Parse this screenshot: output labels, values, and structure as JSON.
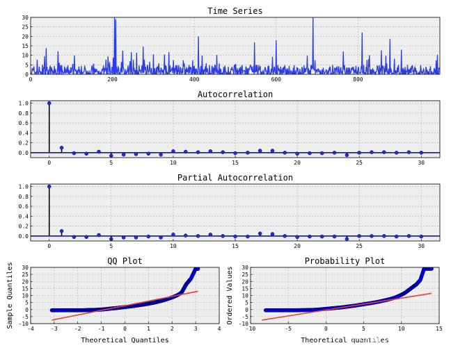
{
  "chart_data": [
    {
      "type": "line",
      "title": "Time Series",
      "xlim": [
        0,
        1000
      ],
      "ylim": [
        0,
        30
      ],
      "x_ticks": [
        0,
        200,
        400,
        600,
        800
      ],
      "y_ticks": [
        0,
        5,
        10,
        15,
        20,
        25,
        30
      ],
      "grid": true,
      "series": [
        {
          "color": "#2b3ee6",
          "approx_length": 1000,
          "typical_range": [
            0,
            5
          ],
          "max": 30
        }
      ]
    },
    {
      "type": "stem",
      "title": "Autocorrelation",
      "xlim": [
        -1.5,
        31.5
      ],
      "ylim": [
        -0.1,
        1.05
      ],
      "x_ticks": [
        0,
        5,
        10,
        15,
        20,
        25,
        30
      ],
      "y_ticks": [
        0.0,
        0.2,
        0.4,
        0.6,
        0.8,
        1.0
      ],
      "grid": true,
      "lags": [
        0,
        1,
        2,
        3,
        4,
        5,
        6,
        7,
        8,
        9,
        10,
        11,
        12,
        13,
        14,
        15,
        16,
        17,
        18,
        19,
        20,
        21,
        22,
        23,
        24,
        25,
        26,
        27,
        28,
        29,
        30
      ],
      "values": [
        1.0,
        0.1,
        -0.01,
        -0.02,
        0.02,
        -0.06,
        -0.04,
        -0.03,
        -0.02,
        -0.04,
        0.03,
        0.02,
        0.01,
        0.03,
        0.01,
        -0.01,
        0.0,
        0.04,
        0.04,
        0.0,
        -0.02,
        -0.01,
        -0.01,
        0.0,
        -0.05,
        0.0,
        0.01,
        0.01,
        0.0,
        0.01,
        0.0
      ]
    },
    {
      "type": "stem",
      "title": "Partial Autocorrelation",
      "xlim": [
        -1.5,
        31.5
      ],
      "ylim": [
        -0.1,
        1.05
      ],
      "x_ticks": [
        0,
        5,
        10,
        15,
        20,
        25,
        30
      ],
      "y_ticks": [
        0.0,
        0.2,
        0.4,
        0.6,
        0.8,
        1.0
      ],
      "grid": true,
      "lags": [
        0,
        1,
        2,
        3,
        4,
        5,
        6,
        7,
        8,
        9,
        10,
        11,
        12,
        13,
        14,
        15,
        16,
        17,
        18,
        19,
        20,
        21,
        22,
        23,
        24,
        25,
        26,
        27,
        28,
        29,
        30
      ],
      "values": [
        1.0,
        0.1,
        -0.02,
        -0.02,
        0.02,
        -0.06,
        -0.03,
        -0.03,
        -0.01,
        -0.03,
        0.03,
        0.01,
        0.0,
        0.03,
        0.0,
        -0.01,
        -0.01,
        0.05,
        0.04,
        0.0,
        -0.02,
        -0.01,
        -0.01,
        -0.01,
        -0.06,
        0.0,
        0.0,
        0.0,
        -0.01,
        0.0,
        -0.01
      ]
    },
    {
      "type": "scatter",
      "title": "QQ Plot",
      "xlabel": "Theoretical Quantiles",
      "ylabel": "Sample Quantiles",
      "xlim": [
        -4,
        4
      ],
      "ylim": [
        -10,
        30
      ],
      "x_ticks": [
        -4,
        -3,
        -2,
        -1,
        0,
        1,
        2,
        3,
        4
      ],
      "y_ticks": [
        -10,
        -5,
        0,
        5,
        10,
        15,
        20,
        25,
        30
      ],
      "grid": true,
      "points": [
        [
          -3.1,
          -0.5
        ],
        [
          -2.8,
          -0.5
        ],
        [
          -2.5,
          -0.5
        ],
        [
          -2.2,
          -0.5
        ],
        [
          -2.0,
          -0.5
        ],
        [
          -1.8,
          -0.5
        ],
        [
          -1.6,
          -0.4
        ],
        [
          -1.4,
          -0.3
        ],
        [
          -1.2,
          -0.2
        ],
        [
          -1.0,
          0.0
        ],
        [
          -0.8,
          0.3
        ],
        [
          -0.6,
          0.7
        ],
        [
          -0.4,
          1.0
        ],
        [
          -0.2,
          1.4
        ],
        [
          0.0,
          1.8
        ],
        [
          0.2,
          2.2
        ],
        [
          0.4,
          2.6
        ],
        [
          0.6,
          3.1
        ],
        [
          0.8,
          3.6
        ],
        [
          1.0,
          4.2
        ],
        [
          1.2,
          4.8
        ],
        [
          1.4,
          5.6
        ],
        [
          1.6,
          6.4
        ],
        [
          1.8,
          7.5
        ],
        [
          2.0,
          8.6
        ],
        [
          2.2,
          10.0
        ],
        [
          2.4,
          12.0
        ],
        [
          2.5,
          15.0
        ],
        [
          2.6,
          18.0
        ],
        [
          2.7,
          20.0
        ],
        [
          2.8,
          22.0
        ],
        [
          3.0,
          29.0
        ],
        [
          3.1,
          29.0
        ]
      ],
      "fit_line": [
        [
          -3.1,
          -7.5
        ],
        [
          3.1,
          13.0
        ]
      ],
      "point_color": "#0000ff",
      "line_color": "#e84040"
    },
    {
      "type": "scatter",
      "title": "Probability Plot",
      "xlabel": "Theoretical quantiles",
      "ylabel": "Ordered Values",
      "xlim": [
        -10,
        15
      ],
      "ylim": [
        -10,
        30
      ],
      "x_ticks": [
        -10,
        -5,
        0,
        5,
        10,
        15
      ],
      "y_ticks": [
        -10,
        -5,
        0,
        5,
        10,
        15,
        20,
        25,
        30
      ],
      "grid": true,
      "points": [
        [
          -8.0,
          -0.5
        ],
        [
          -7.0,
          -0.5
        ],
        [
          -6.0,
          -0.5
        ],
        [
          -5.0,
          -0.5
        ],
        [
          -4.0,
          -0.5
        ],
        [
          -3.0,
          -0.4
        ],
        [
          -2.0,
          -0.3
        ],
        [
          -1.0,
          0.0
        ],
        [
          0.0,
          0.5
        ],
        [
          1.0,
          1.0
        ],
        [
          2.0,
          1.5
        ],
        [
          3.0,
          2.2
        ],
        [
          4.0,
          2.9
        ],
        [
          5.0,
          3.8
        ],
        [
          6.0,
          4.6
        ],
        [
          7.0,
          5.6
        ],
        [
          8.0,
          6.8
        ],
        [
          9.0,
          8.2
        ],
        [
          10.0,
          10.5
        ],
        [
          10.5,
          12.0
        ],
        [
          11.0,
          14.0
        ],
        [
          11.5,
          16.0
        ],
        [
          12.0,
          18.0
        ],
        [
          12.5,
          21.0
        ],
        [
          13.0,
          29.0
        ],
        [
          14.0,
          29.0
        ]
      ],
      "fit_line": [
        [
          -8.5,
          -7.5
        ],
        [
          14.0,
          11.5
        ]
      ],
      "point_color": "#0000ff",
      "line_color": "#e84040"
    }
  ],
  "watermark": "CSDN @拓端研究室"
}
